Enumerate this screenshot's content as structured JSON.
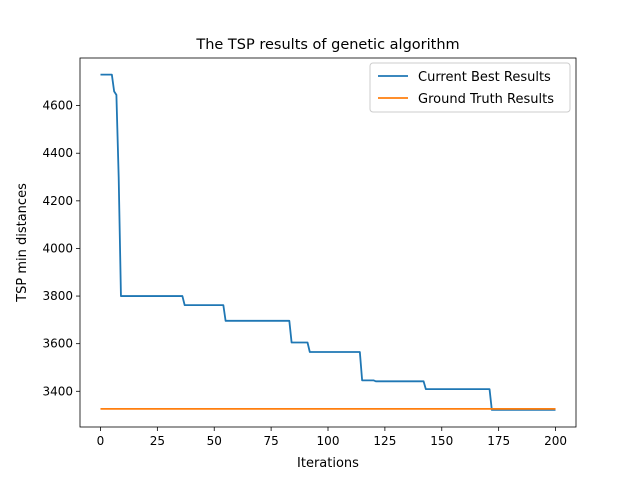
{
  "chart_data": {
    "type": "line",
    "title": "The TSP results of genetic algorithm",
    "xlabel": "Iterations",
    "ylabel": "TSP min distances",
    "xlim": [
      -9,
      209
    ],
    "ylim": [
      3250,
      4800
    ],
    "xticks": [
      0,
      25,
      50,
      75,
      100,
      125,
      150,
      175,
      200
    ],
    "xtick_labels": [
      "0",
      "25",
      "50",
      "75",
      "100",
      "125",
      "150",
      "175",
      "200"
    ],
    "yticks": [
      3400,
      3600,
      3800,
      4000,
      4200,
      4400,
      4600
    ],
    "ytick_labels": [
      "3400",
      "3600",
      "3800",
      "4000",
      "4200",
      "4400",
      "4600"
    ],
    "grid": false,
    "legend_position": "top-right",
    "series": [
      {
        "name": "Current Best Results",
        "color": "#1f77b4",
        "points": [
          [
            0,
            4730
          ],
          [
            5,
            4730
          ],
          [
            6,
            4660
          ],
          [
            7,
            4645
          ],
          [
            8,
            4300
          ],
          [
            9,
            3800
          ],
          [
            36,
            3800
          ],
          [
            37,
            3762
          ],
          [
            54,
            3762
          ],
          [
            55,
            3696
          ],
          [
            83,
            3696
          ],
          [
            84,
            3605
          ],
          [
            91,
            3605
          ],
          [
            92,
            3565
          ],
          [
            114,
            3565
          ],
          [
            115,
            3446
          ],
          [
            120,
            3446
          ],
          [
            121,
            3442
          ],
          [
            142,
            3442
          ],
          [
            143,
            3409
          ],
          [
            171,
            3409
          ],
          [
            172,
            3322
          ],
          [
            200,
            3322
          ]
        ]
      },
      {
        "name": "Ground Truth Results",
        "color": "#ff7f0e",
        "points": [
          [
            0,
            3326
          ],
          [
            200,
            3326
          ]
        ]
      }
    ]
  }
}
